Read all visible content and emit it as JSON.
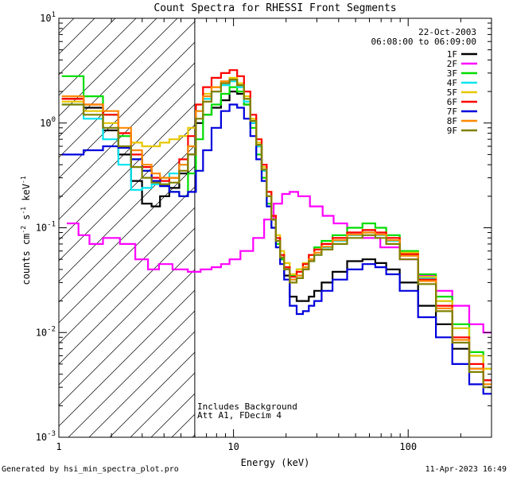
{
  "chart_data": {
    "type": "line",
    "title": "Count Spectra for RHESSI Front Segments",
    "xlabel": "Energy (keV)",
    "ylabel": {
      "base": "counts cm",
      "e1": "-2",
      "mid": " s",
      "e2": "-1",
      "tail": " keV",
      "e3": "-1"
    },
    "xscale": "log",
    "yscale": "log",
    "xlim": [
      1,
      300
    ],
    "ylim": [
      0.001,
      10
    ],
    "x_ticks": [
      1,
      10,
      100
    ],
    "x_tick_labels": [
      "1",
      "10",
      "100"
    ],
    "y_ticks": [
      0.001,
      0.01,
      0.1,
      1,
      10
    ],
    "y_tick_labels": [
      {
        "base": "10",
        "exp": "-3"
      },
      {
        "base": "10",
        "exp": "-2"
      },
      {
        "base": "10",
        "exp": "-1"
      },
      {
        "base": "10",
        "exp": "0"
      },
      {
        "base": "10",
        "exp": "1"
      }
    ],
    "date": "22-Oct-2003",
    "time_range": "06:08:00 to 06:09:00",
    "annotations": [
      "Includes Background",
      "Att A1, FDecim 4"
    ],
    "hatched_region_max_energy": 6,
    "legend_position": "top-right",
    "series": [
      {
        "name": "1F",
        "color": "#000000",
        "x": [
          1.2,
          1.6,
          2,
          2.4,
          2.8,
          3.2,
          3.6,
          4,
          4.6,
          5.2,
          5.8,
          6.4,
          7,
          8,
          9,
          10,
          11,
          12,
          13,
          14,
          15,
          16,
          17,
          18,
          19,
          20,
          22,
          24,
          26,
          28,
          30,
          34,
          40,
          50,
          60,
          70,
          80,
          100,
          130,
          160,
          200,
          250,
          290
        ],
        "y": [
          1.7,
          1.4,
          0.85,
          0.5,
          0.28,
          0.17,
          0.16,
          0.2,
          0.24,
          0.33,
          0.5,
          1.0,
          1.2,
          1.4,
          1.65,
          2.0,
          1.9,
          1.5,
          1.0,
          0.6,
          0.35,
          0.2,
          0.12,
          0.075,
          0.05,
          0.035,
          0.022,
          0.02,
          0.02,
          0.022,
          0.025,
          0.03,
          0.038,
          0.048,
          0.05,
          0.046,
          0.04,
          0.03,
          0.018,
          0.012,
          0.007,
          0.0045,
          0.0035
        ]
      },
      {
        "name": "2F",
        "color": "#ff00ff",
        "x": [
          1.2,
          1.4,
          1.6,
          2,
          2.5,
          3,
          3.5,
          4,
          5,
          6,
          7,
          8,
          9,
          10,
          12,
          14,
          16,
          18,
          20,
          22,
          25,
          30,
          35,
          40,
          50,
          60,
          80,
          100,
          130,
          160,
          200,
          250,
          290
        ],
        "y": [
          0.11,
          0.085,
          0.07,
          0.08,
          0.07,
          0.05,
          0.04,
          0.045,
          0.04,
          0.038,
          0.04,
          0.042,
          0.045,
          0.05,
          0.06,
          0.08,
          0.12,
          0.17,
          0.21,
          0.22,
          0.2,
          0.16,
          0.13,
          0.11,
          0.09,
          0.08,
          0.065,
          0.05,
          0.035,
          0.025,
          0.018,
          0.012,
          0.01
        ]
      },
      {
        "name": "3F",
        "color": "#00dd00",
        "x": [
          1.2,
          1.6,
          2,
          2.4,
          2.8,
          3.2,
          3.6,
          4,
          4.6,
          5.2,
          5.8,
          6.4,
          7,
          8,
          9,
          10,
          11,
          12,
          13,
          14,
          15,
          16,
          17,
          18,
          19,
          20,
          22,
          24,
          26,
          28,
          30,
          34,
          40,
          50,
          60,
          70,
          80,
          100,
          130,
          160,
          200,
          250,
          290
        ],
        "y": [
          2.8,
          1.8,
          1.2,
          0.75,
          0.45,
          0.35,
          0.28,
          0.26,
          0.22,
          0.2,
          0.33,
          0.7,
          1.2,
          1.5,
          1.9,
          2.2,
          2.0,
          1.5,
          0.9,
          0.5,
          0.3,
          0.17,
          0.1,
          0.07,
          0.05,
          0.04,
          0.035,
          0.04,
          0.045,
          0.055,
          0.065,
          0.075,
          0.085,
          0.1,
          0.11,
          0.1,
          0.085,
          0.06,
          0.036,
          0.022,
          0.012,
          0.0065,
          0.0045
        ]
      },
      {
        "name": "4F",
        "color": "#00e5ee",
        "x": [
          1.2,
          1.6,
          2,
          2.4,
          2.8,
          3.2,
          3.6,
          4,
          4.6,
          5.2,
          5.8,
          6.4,
          7,
          8,
          9,
          10,
          11,
          12,
          13,
          14,
          15,
          16,
          17,
          18,
          19,
          20,
          22,
          24,
          26,
          28,
          30,
          34,
          40,
          50,
          60,
          70,
          80,
          100,
          130,
          160,
          200,
          250,
          290
        ],
        "y": [
          1.5,
          1.1,
          0.7,
          0.4,
          0.23,
          0.24,
          0.26,
          0.3,
          0.33,
          0.4,
          0.6,
          1.3,
          1.7,
          2.0,
          2.3,
          2.5,
          2.2,
          1.6,
          1.0,
          0.6,
          0.35,
          0.2,
          0.12,
          0.08,
          0.055,
          0.042,
          0.032,
          0.035,
          0.04,
          0.048,
          0.055,
          0.065,
          0.075,
          0.085,
          0.09,
          0.085,
          0.075,
          0.055,
          0.033,
          0.02,
          0.011,
          0.006,
          0.0045
        ]
      },
      {
        "name": "5F",
        "color": "#e6c800",
        "x": [
          1.2,
          1.6,
          2,
          2.4,
          2.8,
          3.2,
          3.6,
          4,
          4.6,
          5.2,
          5.8,
          6.4,
          7,
          8,
          9,
          10,
          11,
          12,
          13,
          14,
          15,
          16,
          17,
          18,
          19,
          20,
          22,
          24,
          26,
          28,
          30,
          34,
          40,
          50,
          60,
          70,
          80,
          100,
          130,
          160,
          200,
          250,
          290
        ],
        "y": [
          1.6,
          1.3,
          1.0,
          0.8,
          0.65,
          0.6,
          0.6,
          0.65,
          0.7,
          0.75,
          0.9,
          1.5,
          1.9,
          2.2,
          2.5,
          2.7,
          2.4,
          1.8,
          1.1,
          0.65,
          0.38,
          0.22,
          0.13,
          0.085,
          0.06,
          0.046,
          0.036,
          0.04,
          0.046,
          0.055,
          0.062,
          0.07,
          0.08,
          0.09,
          0.095,
          0.09,
          0.08,
          0.058,
          0.034,
          0.02,
          0.011,
          0.006,
          0.0045
        ]
      },
      {
        "name": "6F",
        "color": "#ff0000",
        "x": [
          1.2,
          1.6,
          2,
          2.4,
          2.8,
          3.2,
          3.6,
          4,
          4.6,
          5.2,
          5.8,
          6.4,
          7,
          8,
          9,
          10,
          11,
          12,
          13,
          14,
          15,
          16,
          17,
          18,
          19,
          20,
          22,
          24,
          26,
          28,
          30,
          34,
          40,
          50,
          60,
          70,
          80,
          100,
          130,
          160,
          200,
          250,
          290
        ],
        "y": [
          1.7,
          1.5,
          1.2,
          0.8,
          0.5,
          0.38,
          0.3,
          0.28,
          0.3,
          0.45,
          0.75,
          1.5,
          2.2,
          2.7,
          3.0,
          3.2,
          2.8,
          2.0,
          1.2,
          0.7,
          0.4,
          0.22,
          0.13,
          0.08,
          0.055,
          0.042,
          0.034,
          0.038,
          0.045,
          0.055,
          0.062,
          0.07,
          0.08,
          0.09,
          0.095,
          0.09,
          0.08,
          0.056,
          0.032,
          0.018,
          0.009,
          0.005,
          0.0035
        ]
      },
      {
        "name": "7F",
        "color": "#0000dd",
        "x": [
          1.2,
          1.6,
          2,
          2.4,
          2.8,
          3.2,
          3.6,
          4,
          4.6,
          5.2,
          5.8,
          6.4,
          7,
          8,
          9,
          10,
          11,
          12,
          13,
          14,
          15,
          16,
          17,
          18,
          19,
          20,
          22,
          24,
          26,
          28,
          30,
          34,
          40,
          50,
          60,
          70,
          80,
          100,
          130,
          160,
          200,
          250,
          290
        ],
        "y": [
          0.5,
          0.55,
          0.6,
          0.58,
          0.45,
          0.35,
          0.28,
          0.25,
          0.22,
          0.2,
          0.22,
          0.35,
          0.55,
          0.9,
          1.3,
          1.5,
          1.4,
          1.1,
          0.75,
          0.45,
          0.28,
          0.16,
          0.1,
          0.065,
          0.045,
          0.032,
          0.018,
          0.015,
          0.016,
          0.018,
          0.02,
          0.025,
          0.032,
          0.04,
          0.045,
          0.042,
          0.036,
          0.025,
          0.014,
          0.009,
          0.005,
          0.0032,
          0.0026
        ]
      },
      {
        "name": "8F",
        "color": "#ff8800",
        "x": [
          1.2,
          1.6,
          2,
          2.4,
          2.8,
          3.2,
          3.6,
          4,
          4.6,
          5.2,
          5.8,
          6.4,
          7,
          8,
          9,
          10,
          11,
          12,
          13,
          14,
          15,
          16,
          17,
          18,
          19,
          20,
          22,
          24,
          26,
          28,
          30,
          34,
          40,
          50,
          60,
          70,
          80,
          100,
          130,
          160,
          200,
          250,
          290
        ],
        "y": [
          1.8,
          1.5,
          1.3,
          0.9,
          0.55,
          0.4,
          0.33,
          0.3,
          0.3,
          0.4,
          0.6,
          1.3,
          1.8,
          2.2,
          2.5,
          2.6,
          2.3,
          1.7,
          1.05,
          0.62,
          0.36,
          0.2,
          0.12,
          0.075,
          0.052,
          0.04,
          0.032,
          0.035,
          0.042,
          0.05,
          0.058,
          0.066,
          0.076,
          0.086,
          0.09,
          0.086,
          0.076,
          0.054,
          0.031,
          0.017,
          0.0085,
          0.0045,
          0.0032
        ]
      },
      {
        "name": "9F",
        "color": "#808000",
        "x": [
          1.2,
          1.6,
          2,
          2.4,
          2.8,
          3.2,
          3.6,
          4,
          4.6,
          5.2,
          5.8,
          6.4,
          7,
          8,
          9,
          10,
          11,
          12,
          13,
          14,
          15,
          16,
          17,
          18,
          19,
          20,
          22,
          24,
          26,
          28,
          30,
          34,
          40,
          50,
          60,
          70,
          80,
          100,
          130,
          160,
          200,
          250,
          290
        ],
        "y": [
          1.5,
          1.2,
          0.9,
          0.6,
          0.38,
          0.3,
          0.27,
          0.26,
          0.27,
          0.35,
          0.5,
          1.1,
          1.6,
          2.0,
          2.4,
          2.6,
          2.3,
          1.7,
          1.05,
          0.62,
          0.36,
          0.2,
          0.12,
          0.075,
          0.052,
          0.04,
          0.03,
          0.033,
          0.04,
          0.048,
          0.055,
          0.062,
          0.07,
          0.08,
          0.085,
          0.08,
          0.07,
          0.05,
          0.029,
          0.016,
          0.008,
          0.0042,
          0.003
        ]
      }
    ]
  },
  "footer": {
    "generated_by": "Generated by hsi_min_spectra_plot.pro",
    "timestamp": "11-Apr-2023 16:49"
  }
}
